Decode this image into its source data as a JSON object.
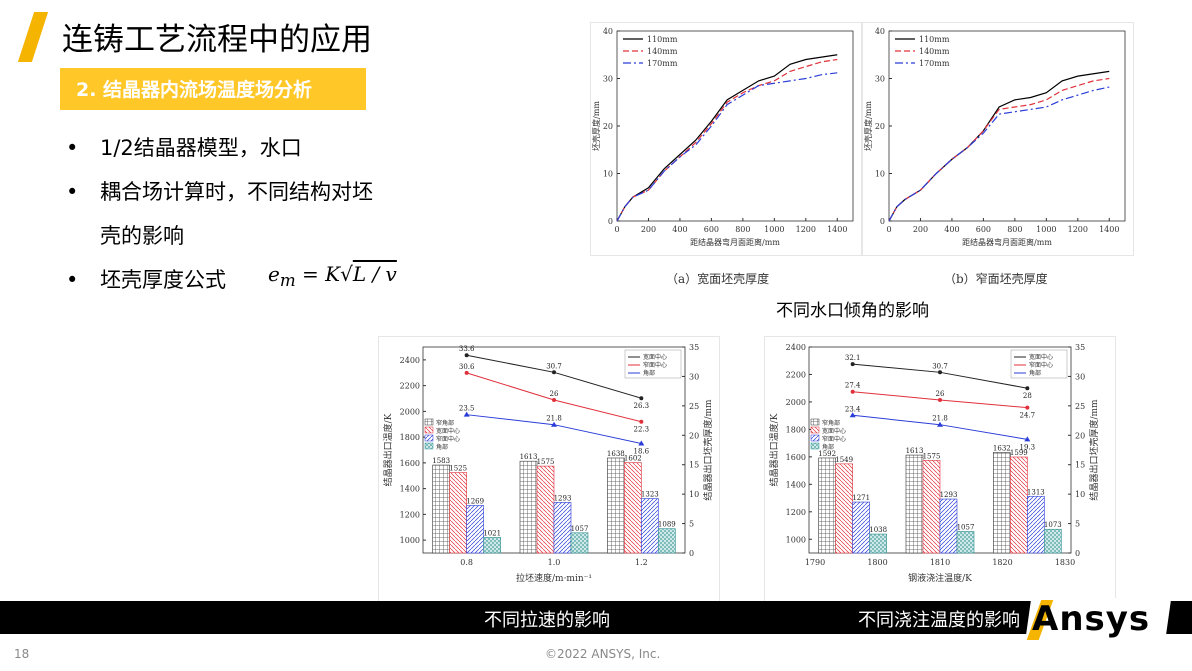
{
  "header": {
    "title": "连铸工艺流程中的应用",
    "subtitle": "2. 结晶器内流场温度场分析"
  },
  "bullets": [
    "1/2结晶器模型，水口",
    "耦合场计算时，不同结构对坯",
    "壳的影响",
    "坯壳厚度公式"
  ],
  "formula": {
    "lhs": "e",
    "sub": "m",
    "rhs": "= K",
    "radicand": "L / v"
  },
  "captions": {
    "nozzle_angle": "不同水口倾角的影响",
    "casting_speed": "不同拉速的影响",
    "pour_temp": "不同浇注温度的影响",
    "sub_a": "（a）宽面坯壳厚度",
    "sub_b": "（b）窄面坯壳厚度"
  },
  "footer": {
    "page": "18",
    "copyright": "©2022 ANSYS, Inc.",
    "logo": "Ansys"
  },
  "colors": {
    "accent": "#f5b400",
    "subtitle_bg": "#ffc727"
  },
  "chart_data": [
    {
      "type": "line",
      "id": "wide",
      "xlabel": "距结晶器弯月面距离/mm",
      "ylabel": "坯壳厚度/mm",
      "xlim": [
        0,
        1500
      ],
      "ylim": [
        0,
        40
      ],
      "xticks": [
        0,
        200,
        400,
        600,
        800,
        1000,
        1200,
        1400
      ],
      "yticks": [
        0,
        10,
        20,
        30,
        40
      ],
      "grid": false,
      "legend": "top-left",
      "series": [
        {
          "name": "110mm",
          "color": "#000000",
          "dash": "",
          "points": [
            [
              0,
              0
            ],
            [
              50,
              3
            ],
            [
              100,
              5
            ],
            [
              200,
              7
            ],
            [
              300,
              11
            ],
            [
              400,
              14
            ],
            [
              500,
              17
            ],
            [
              600,
              21
            ],
            [
              700,
              25.5
            ],
            [
              800,
              27.5
            ],
            [
              900,
              29.5
            ],
            [
              1000,
              30.5
            ],
            [
              1100,
              33
            ],
            [
              1200,
              34
            ],
            [
              1300,
              34.5
            ],
            [
              1400,
              35
            ]
          ]
        },
        {
          "name": "140mm",
          "color": "#e0303a",
          "dash": "6,3",
          "points": [
            [
              0,
              0
            ],
            [
              50,
              3
            ],
            [
              100,
              5
            ],
            [
              200,
              6.5
            ],
            [
              300,
              10.5
            ],
            [
              400,
              13.5
            ],
            [
              500,
              16.5
            ],
            [
              600,
              20.5
            ],
            [
              700,
              25
            ],
            [
              800,
              27
            ],
            [
              900,
              28.5
            ],
            [
              1000,
              29.5
            ],
            [
              1100,
              31.5
            ],
            [
              1200,
              32.5
            ],
            [
              1300,
              33.5
            ],
            [
              1400,
              34
            ]
          ]
        },
        {
          "name": "170mm",
          "color": "#2a3dd8",
          "dash": "8,3,2,3",
          "points": [
            [
              0,
              0
            ],
            [
              50,
              3
            ],
            [
              100,
              5
            ],
            [
              200,
              6.5
            ],
            [
              300,
              10.5
            ],
            [
              400,
              13.5
            ],
            [
              500,
              16
            ],
            [
              600,
              20
            ],
            [
              700,
              24.5
            ],
            [
              800,
              26.5
            ],
            [
              900,
              28.5
            ],
            [
              1000,
              29
            ],
            [
              1100,
              29.5
            ],
            [
              1200,
              30
            ],
            [
              1300,
              30.8
            ],
            [
              1400,
              31.2
            ]
          ]
        }
      ]
    },
    {
      "type": "line",
      "id": "narrow",
      "xlabel": "距结晶器弯月面距离/mm",
      "ylabel": "坯壳厚度/mm",
      "xlim": [
        0,
        1500
      ],
      "ylim": [
        0,
        40
      ],
      "xticks": [
        0,
        200,
        400,
        600,
        800,
        1000,
        1200,
        1400
      ],
      "yticks": [
        0,
        10,
        20,
        30,
        40
      ],
      "grid": false,
      "legend": "top-left",
      "series": [
        {
          "name": "110mm",
          "color": "#000000",
          "dash": "",
          "points": [
            [
              0,
              0
            ],
            [
              50,
              3
            ],
            [
              100,
              4.5
            ],
            [
              200,
              6.5
            ],
            [
              300,
              10
            ],
            [
              400,
              13
            ],
            [
              500,
              15.5
            ],
            [
              600,
              19
            ],
            [
              700,
              24
            ],
            [
              800,
              25.5
            ],
            [
              900,
              26
            ],
            [
              1000,
              27
            ],
            [
              1100,
              29.5
            ],
            [
              1200,
              30.5
            ],
            [
              1300,
              31
            ],
            [
              1400,
              31.5
            ]
          ]
        },
        {
          "name": "140mm",
          "color": "#e0303a",
          "dash": "6,3",
          "points": [
            [
              0,
              0
            ],
            [
              50,
              3
            ],
            [
              100,
              4.5
            ],
            [
              200,
              6.5
            ],
            [
              300,
              10
            ],
            [
              400,
              13
            ],
            [
              500,
              15.5
            ],
            [
              600,
              19
            ],
            [
              700,
              23.5
            ],
            [
              800,
              24
            ],
            [
              900,
              24.5
            ],
            [
              1000,
              25.5
            ],
            [
              1100,
              27.5
            ],
            [
              1200,
              28.5
            ],
            [
              1300,
              29.5
            ],
            [
              1400,
              30
            ]
          ]
        },
        {
          "name": "170mm",
          "color": "#2a3dd8",
          "dash": "8,3,2,3",
          "points": [
            [
              0,
              0
            ],
            [
              50,
              3
            ],
            [
              100,
              4.5
            ],
            [
              200,
              6.5
            ],
            [
              300,
              10
            ],
            [
              400,
              13
            ],
            [
              500,
              15.5
            ],
            [
              600,
              18.5
            ],
            [
              700,
              22.5
            ],
            [
              800,
              23
            ],
            [
              900,
              23.5
            ],
            [
              1000,
              24
            ],
            [
              1100,
              25.5
            ],
            [
              1200,
              26.5
            ],
            [
              1300,
              27.5
            ],
            [
              1400,
              28.2
            ]
          ]
        }
      ]
    },
    {
      "type": "bar",
      "id": "speed",
      "xlabel": "拉坯速度/m·min⁻¹",
      "ylabel": "结晶器出口温度/K",
      "y2label": "结晶器出口坯壳厚度/mm",
      "categories": [
        "0.8",
        "1.0",
        "1.2"
      ],
      "ylim": [
        900,
        2500
      ],
      "yticks": [
        1000,
        1200,
        1400,
        1600,
        1800,
        2000,
        2200,
        2400
      ],
      "y2lim": [
        0,
        35
      ],
      "y2ticks": [
        0,
        5,
        10,
        15,
        20,
        25,
        30,
        35
      ],
      "bar_legend": [
        "窄角部",
        "宽面中心",
        "窄面中心",
        "角部"
      ],
      "line_legend": [
        "宽面中心",
        "窄面中心",
        "角部"
      ],
      "bars": [
        {
          "name": "窄角部",
          "values": [
            1583,
            1613,
            1638
          ]
        },
        {
          "name": "宽面中心",
          "values": [
            1525,
            1575,
            1602
          ]
        },
        {
          "name": "窄面中心",
          "values": [
            1269,
            1293,
            1323
          ]
        },
        {
          "name": "角部",
          "values": [
            1021,
            1057,
            1089
          ]
        }
      ],
      "lines": [
        {
          "name": "宽面中心",
          "values": [
            33.6,
            30.7,
            26.3
          ]
        },
        {
          "name": "窄面中心",
          "values": [
            30.6,
            26,
            22.3
          ]
        },
        {
          "name": "角部",
          "values": [
            23.5,
            21.8,
            18.6
          ]
        }
      ]
    },
    {
      "type": "bar",
      "id": "temp",
      "xlabel": "钢液浇注温度/K",
      "ylabel": "结晶器出口温度/K",
      "y2label": "结晶器出口坯壳厚度/mm",
      "categories": [
        "1795",
        "1810",
        "1825"
      ],
      "xticks": [
        "1790",
        "1800",
        "1810",
        "1820",
        "1830"
      ],
      "ylim": [
        900,
        2400
      ],
      "yticks": [
        1000,
        1200,
        1400,
        1600,
        1800,
        2000,
        2200,
        2400
      ],
      "y2lim": [
        0,
        35
      ],
      "y2ticks": [
        0,
        5,
        10,
        15,
        20,
        25,
        30,
        35
      ],
      "bar_legend": [
        "窄角部",
        "宽面中心",
        "窄面中心",
        "角部"
      ],
      "line_legend": [
        "宽面中心",
        "窄面中心",
        "角部"
      ],
      "bars": [
        {
          "name": "窄角部",
          "values": [
            1592,
            1613,
            1632
          ]
        },
        {
          "name": "宽面中心",
          "values": [
            1549,
            1575,
            1599
          ]
        },
        {
          "name": "窄面中心",
          "values": [
            1271,
            1293,
            1313
          ]
        },
        {
          "name": "角部",
          "values": [
            1038,
            1057,
            1073
          ]
        }
      ],
      "lines": [
        {
          "name": "宽面中心",
          "values": [
            32.1,
            30.7,
            28
          ]
        },
        {
          "name": "窄面中心",
          "values": [
            27.4,
            26,
            24.7
          ]
        },
        {
          "name": "角部",
          "values": [
            23.4,
            21.8,
            19.3
          ]
        }
      ]
    }
  ]
}
